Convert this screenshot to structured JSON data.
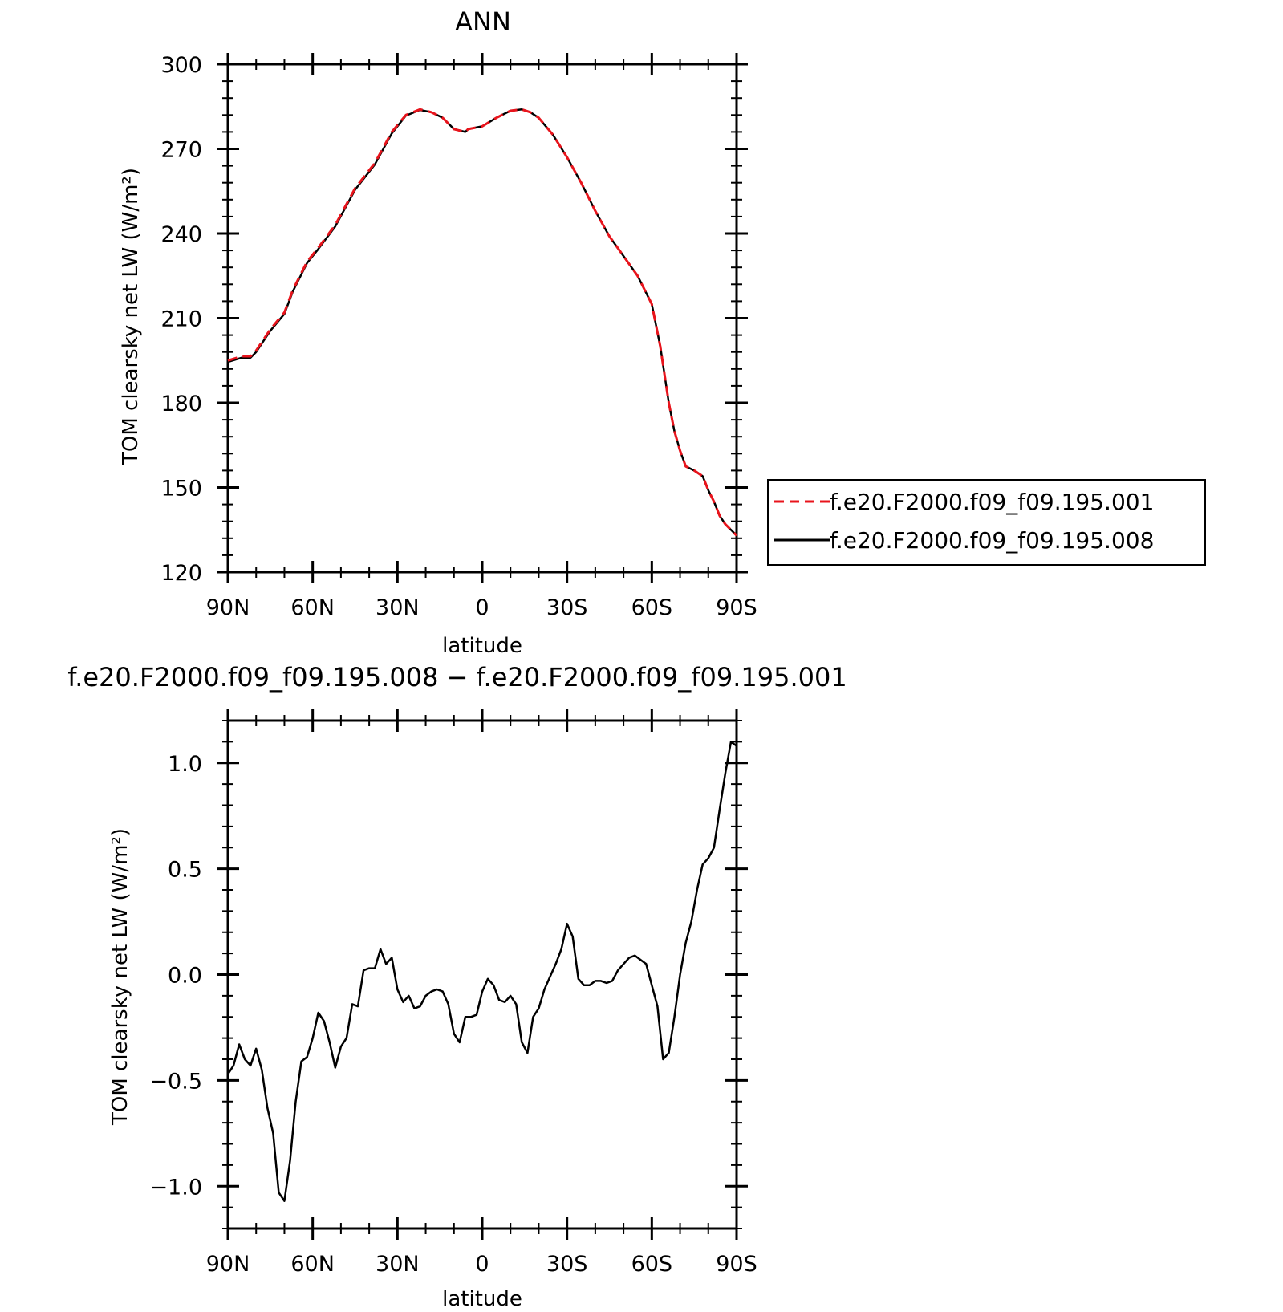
{
  "charts": [
    {
      "title": "ANN",
      "xlabel": "latitude",
      "ylabel": "TOM clearsky net LW (W/m²)"
    },
    {
      "title": "f.e20.F2000.f09_f09.195.008 − f.e20.F2000.f09_f09.195.001",
      "xlabel": "latitude",
      "ylabel": "TOM clearsky net LW (W/m²)"
    }
  ],
  "legend": {
    "entries": [
      {
        "label": "f.e20.F2000.f09_f09.195.001",
        "color": "#e8141c",
        "style": "dashed"
      },
      {
        "label": "f.e20.F2000.f09_f09.195.008",
        "color": "#000000",
        "style": "solid"
      }
    ]
  },
  "chart_data": [
    {
      "type": "line",
      "title": "ANN",
      "xlabel": "latitude",
      "ylabel": "TOM clearsky net LW (W/m²)",
      "xlim": [
        90,
        -90
      ],
      "ylim": [
        120,
        300
      ],
      "x_ticks": [
        90,
        60,
        30,
        0,
        -30,
        -60,
        -90
      ],
      "x_tick_labels": [
        "90N",
        "60N",
        "30N",
        "0",
        "30S",
        "60S",
        "90S"
      ],
      "y_ticks": [
        120,
        150,
        180,
        210,
        240,
        270,
        300
      ],
      "y_tick_labels": [
        "120",
        "150",
        "180",
        "210",
        "240",
        "270",
        "300"
      ],
      "x": [
        90,
        85,
        82,
        80,
        75,
        70,
        67,
        62,
        58,
        52,
        45,
        38,
        32,
        27,
        22,
        18,
        14,
        10,
        6,
        5,
        0,
        -5,
        -10,
        -14,
        -17,
        -20,
        -25,
        -30,
        -35,
        -40,
        -45,
        -50,
        -55,
        -60,
        -63,
        -66,
        -68,
        -70,
        -72,
        -75,
        -78,
        -80,
        -82,
        -84,
        -86,
        -88,
        -90
      ],
      "grid": false,
      "legend_position": "right",
      "series": [
        {
          "name": "f.e20.F2000.f09_f09.195.001",
          "color": "#e8141c",
          "values": [
            195,
            196.5,
            196.5,
            198.5,
            206,
            212,
            220,
            230,
            235,
            243,
            256,
            265,
            276,
            282,
            284,
            283,
            281,
            277,
            276,
            277,
            278,
            281,
            283.5,
            284,
            283,
            281,
            275,
            267,
            258,
            248,
            239,
            232,
            225,
            215,
            200,
            180,
            170,
            163,
            157.5,
            156,
            154,
            149,
            145,
            140,
            137,
            135,
            133
          ]
        },
        {
          "name": "f.e20.F2000.f09_f09.195.008",
          "color": "#000000",
          "values": [
            194.5,
            196,
            196,
            198,
            205.5,
            211.5,
            219.5,
            229.5,
            234.5,
            242.5,
            255.5,
            264.5,
            275.5,
            281.8,
            283.8,
            283,
            281,
            277,
            276,
            277,
            278,
            281,
            283.5,
            284,
            283,
            281,
            275,
            267,
            258,
            248,
            239,
            232,
            225,
            215,
            200,
            180,
            170,
            163,
            157.5,
            156,
            154,
            149,
            145,
            140,
            137,
            135,
            133
          ]
        }
      ]
    },
    {
      "type": "line",
      "title": "f.e20.F2000.f09_f09.195.008 − f.e20.F2000.f09_f09.195.001",
      "xlabel": "latitude",
      "ylabel": "TOM clearsky net LW (W/m²)",
      "xlim": [
        90,
        -90
      ],
      "ylim": [
        -1.2,
        1.2
      ],
      "x_ticks": [
        90,
        60,
        30,
        0,
        -30,
        -60,
        -90
      ],
      "x_tick_labels": [
        "90N",
        "60N",
        "30N",
        "0",
        "30S",
        "60S",
        "90S"
      ],
      "y_ticks": [
        -1.0,
        -0.5,
        0.0,
        0.5,
        1.0
      ],
      "y_tick_labels": [
        "−1.0",
        "−0.5",
        "0.0",
        "0.5",
        "1.0"
      ],
      "x": [
        90,
        88,
        86,
        84,
        82,
        80,
        78,
        76,
        74,
        72,
        70,
        68,
        66,
        64,
        62,
        60,
        58,
        56,
        54,
        52,
        50,
        48,
        46,
        44,
        42,
        40,
        38,
        36,
        34,
        32,
        30,
        28,
        26,
        24,
        22,
        20,
        18,
        16,
        14,
        12,
        10,
        8,
        6,
        4,
        2,
        0,
        -2,
        -4,
        -6,
        -8,
        -10,
        -12,
        -14,
        -16,
        -18,
        -20,
        -22,
        -24,
        -26,
        -28,
        -30,
        -32,
        -34,
        -36,
        -38,
        -40,
        -42,
        -44,
        -46,
        -48,
        -50,
        -52,
        -54,
        -56,
        -58,
        -60,
        -62,
        -64,
        -66,
        -68,
        -70,
        -72,
        -74,
        -76,
        -78,
        -80,
        -82,
        -84,
        -86,
        -88,
        -90
      ],
      "series": [
        {
          "color": "#000000",
          "values": [
            -0.47,
            -0.43,
            -0.33,
            -0.4,
            -0.43,
            -0.35,
            -0.45,
            -0.63,
            -0.75,
            -1.03,
            -1.07,
            -0.88,
            -0.6,
            -0.41,
            -0.39,
            -0.3,
            -0.18,
            -0.22,
            -0.32,
            -0.44,
            -0.34,
            -0.3,
            -0.14,
            -0.15,
            0.02,
            0.03,
            0.03,
            0.12,
            0.05,
            0.08,
            -0.07,
            -0.13,
            -0.1,
            -0.16,
            -0.15,
            -0.1,
            -0.08,
            -0.07,
            -0.08,
            -0.14,
            -0.28,
            -0.32,
            -0.2,
            -0.2,
            -0.19,
            -0.08,
            -0.02,
            -0.05,
            -0.12,
            -0.13,
            -0.1,
            -0.14,
            -0.32,
            -0.37,
            -0.2,
            -0.16,
            -0.07,
            -0.01,
            0.05,
            0.12,
            0.24,
            0.18,
            -0.02,
            -0.05,
            -0.05,
            -0.03,
            -0.03,
            -0.04,
            -0.03,
            0.02,
            0.05,
            0.08,
            0.09,
            0.07,
            0.05,
            -0.05,
            -0.15,
            -0.4,
            -0.37,
            -0.2,
            0.0,
            0.15,
            0.25,
            0.4,
            0.52,
            0.55,
            0.6,
            0.78,
            0.95,
            1.1,
            1.08
          ]
        }
      ]
    }
  ]
}
